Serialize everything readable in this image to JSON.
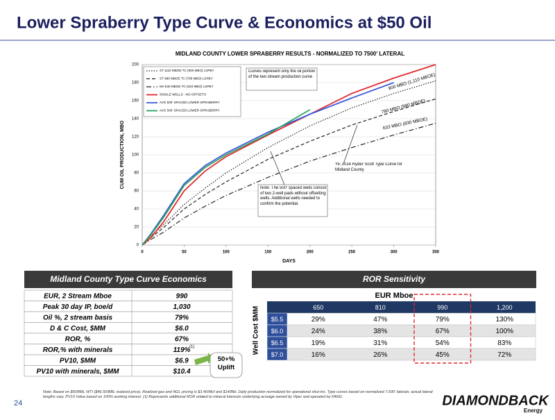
{
  "title": "Lower Spraberry Type Curve & Economics at $50 Oil",
  "chart_data": {
    "type": "line",
    "title": "MIDLAND COUNTY LOWER SPRABERRY RESULTS - NORMALIZED TO 7500' LATERAL",
    "x_label": "DAYS",
    "y_label": "CUM OIL PRODUCTION, MBO",
    "x": [
      0,
      10,
      25,
      50,
      75,
      100,
      150,
      200,
      250,
      300,
      350
    ],
    "series": [
      {
        "name": "ST 1110 MBOE TC (900 MBO) LSPBY",
        "color": "#222222",
        "style": "dotted",
        "values": [
          0,
          10,
          22,
          45,
          63,
          80,
          108,
          132,
          152,
          168,
          182
        ]
      },
      {
        "name": "ST 990 MBOE TC (780 MBO) LSPBY",
        "color": "#222222",
        "style": "dashed",
        "values": [
          0,
          8,
          19,
          40,
          56,
          70,
          95,
          115,
          133,
          148,
          162
        ]
      },
      {
        "name": "MA 830 MBOE TC (633 MBO) LSPBY",
        "color": "#222222",
        "style": "dashdot",
        "values": [
          0,
          6,
          14,
          30,
          43,
          55,
          75,
          93,
          108,
          122,
          135
        ]
      },
      {
        "name": "SINGLE WELLS - NO OFFSETS",
        "color": "#e0282e",
        "style": "solid",
        "values": [
          0,
          8,
          25,
          60,
          82,
          98,
          122,
          145,
          168,
          185,
          200
        ]
      },
      {
        "name": "AVG 500' SPACED LOWER SPRABERRY",
        "color": "#3b5bdb",
        "style": "solid",
        "values": [
          0,
          12,
          32,
          68,
          88,
          102,
          125,
          145,
          163,
          180,
          null
        ]
      },
      {
        "name": "AVG 500' SPACED LOWER SPRABERRY",
        "color": "#2ca25f",
        "style": "solid",
        "values": [
          0,
          11,
          30,
          66,
          86,
          100,
          123,
          150,
          null,
          null,
          null
        ]
      }
    ],
    "xlim": [
      0,
      350
    ],
    "xticks": [
      0,
      50,
      100,
      150,
      200,
      250,
      300,
      350
    ],
    "ylim": [
      0,
      200
    ],
    "yticks": [
      0,
      20,
      40,
      60,
      80,
      100,
      120,
      140,
      160,
      180,
      200
    ],
    "annotations": [
      "Curves represent only the oil portion of the two stream production curve",
      "900 MBO (1,110 MBOE)",
      "780 MBO (990 MBOE)",
      "633 MBO (830 MBOE)",
      "YE 2014 Ryder Scott Type Curve for Midland County",
      "Note: The 500' spaced wells consist of two 2-well pads without offsetting wells. Additional wells needed to confirm the potential."
    ]
  },
  "economics": {
    "title": "Midland County Type Curve Economics",
    "rows": [
      [
        "EUR, 2 Stream Mboe",
        "990"
      ],
      [
        "Peak 30 day IP, boe/d",
        "1,030"
      ],
      [
        "Oil %, 2 stream basis",
        "79%"
      ],
      [
        "D & C Cost, $MM",
        "$6.0"
      ],
      [
        "ROR, %",
        "67%"
      ],
      [
        "ROR,% with minerals",
        "119%"
      ],
      [
        "PV10, $MM",
        "$6.9"
      ],
      [
        "PV10 with minerals, $MM",
        "$10.4"
      ]
    ],
    "footnote_marker": "(1)"
  },
  "sensitivity": {
    "title": "ROR Sensitivity",
    "column_header": "EUR Mboe",
    "row_header": "Well Cost $MM",
    "columns": [
      "650",
      "810",
      "990",
      "1,200"
    ],
    "rows": [
      {
        "cost": "$5.5",
        "values": [
          "29%",
          "47%",
          "79%",
          "130%"
        ]
      },
      {
        "cost": "$6.0",
        "values": [
          "24%",
          "38%",
          "67%",
          "100%"
        ]
      },
      {
        "cost": "$6.5",
        "values": [
          "19%",
          "31%",
          "54%",
          "83%"
        ]
      },
      {
        "cost": "$7.0",
        "values": [
          "16%",
          "26%",
          "45%",
          "72%"
        ]
      }
    ]
  },
  "callout": "50+% Uplift",
  "note": "Note: Based on $50/BBL WTI ($46.50/BBL realized price). Realized gas and NGL pricing is $3.40/Mcf and $14/Bbl. Daily production normalized for operational shut-ins. Type curves based on normalized 7,500' laterals; actual lateral lengths vary. PV10 Value based on 100% working interest. (1) Represents additional ROR related to mineral interests underlying acreage owned by Viper and operated by FANG.",
  "page_number": "24",
  "logo": {
    "name": "DIAMONDBACK",
    "sub": "Energy"
  }
}
